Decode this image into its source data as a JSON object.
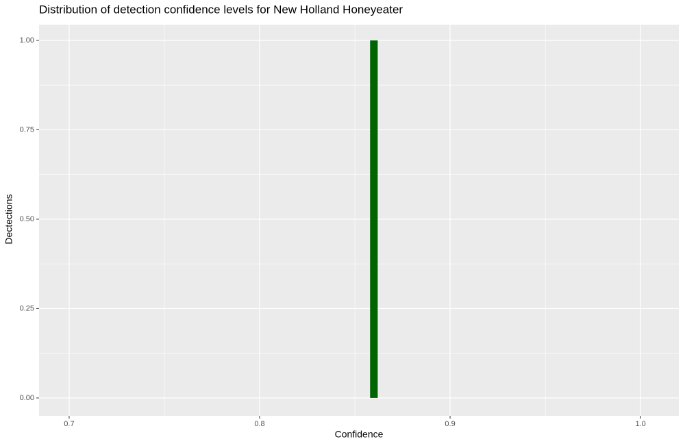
{
  "chart_data": {
    "type": "histogram",
    "title": "Distribution of detection confidence levels for New Holland Honeyeater",
    "x_label": "Confidence",
    "y_label": "Dectections",
    "bins": [
      0.858,
      0.862
    ],
    "values": [
      1
    ],
    "color": "#006400",
    "xlim": [
      0.6842,
      1.0201
    ],
    "ylim": [
      -0.05,
      1.044
    ],
    "xticks": [
      0.7,
      0.8,
      0.9,
      {
        "value": 1,
        "label": "1.0"
      }
    ],
    "yticks": [
      {
        "value": 0,
        "label": "0.00"
      },
      {
        "value": 0.25,
        "label": "0.25"
      },
      {
        "value": 0.5,
        "label": "0.50"
      },
      {
        "value": 0.75,
        "label": "0.75"
      },
      {
        "value": 1,
        "label": "1.00"
      }
    ],
    "grid": true
  }
}
